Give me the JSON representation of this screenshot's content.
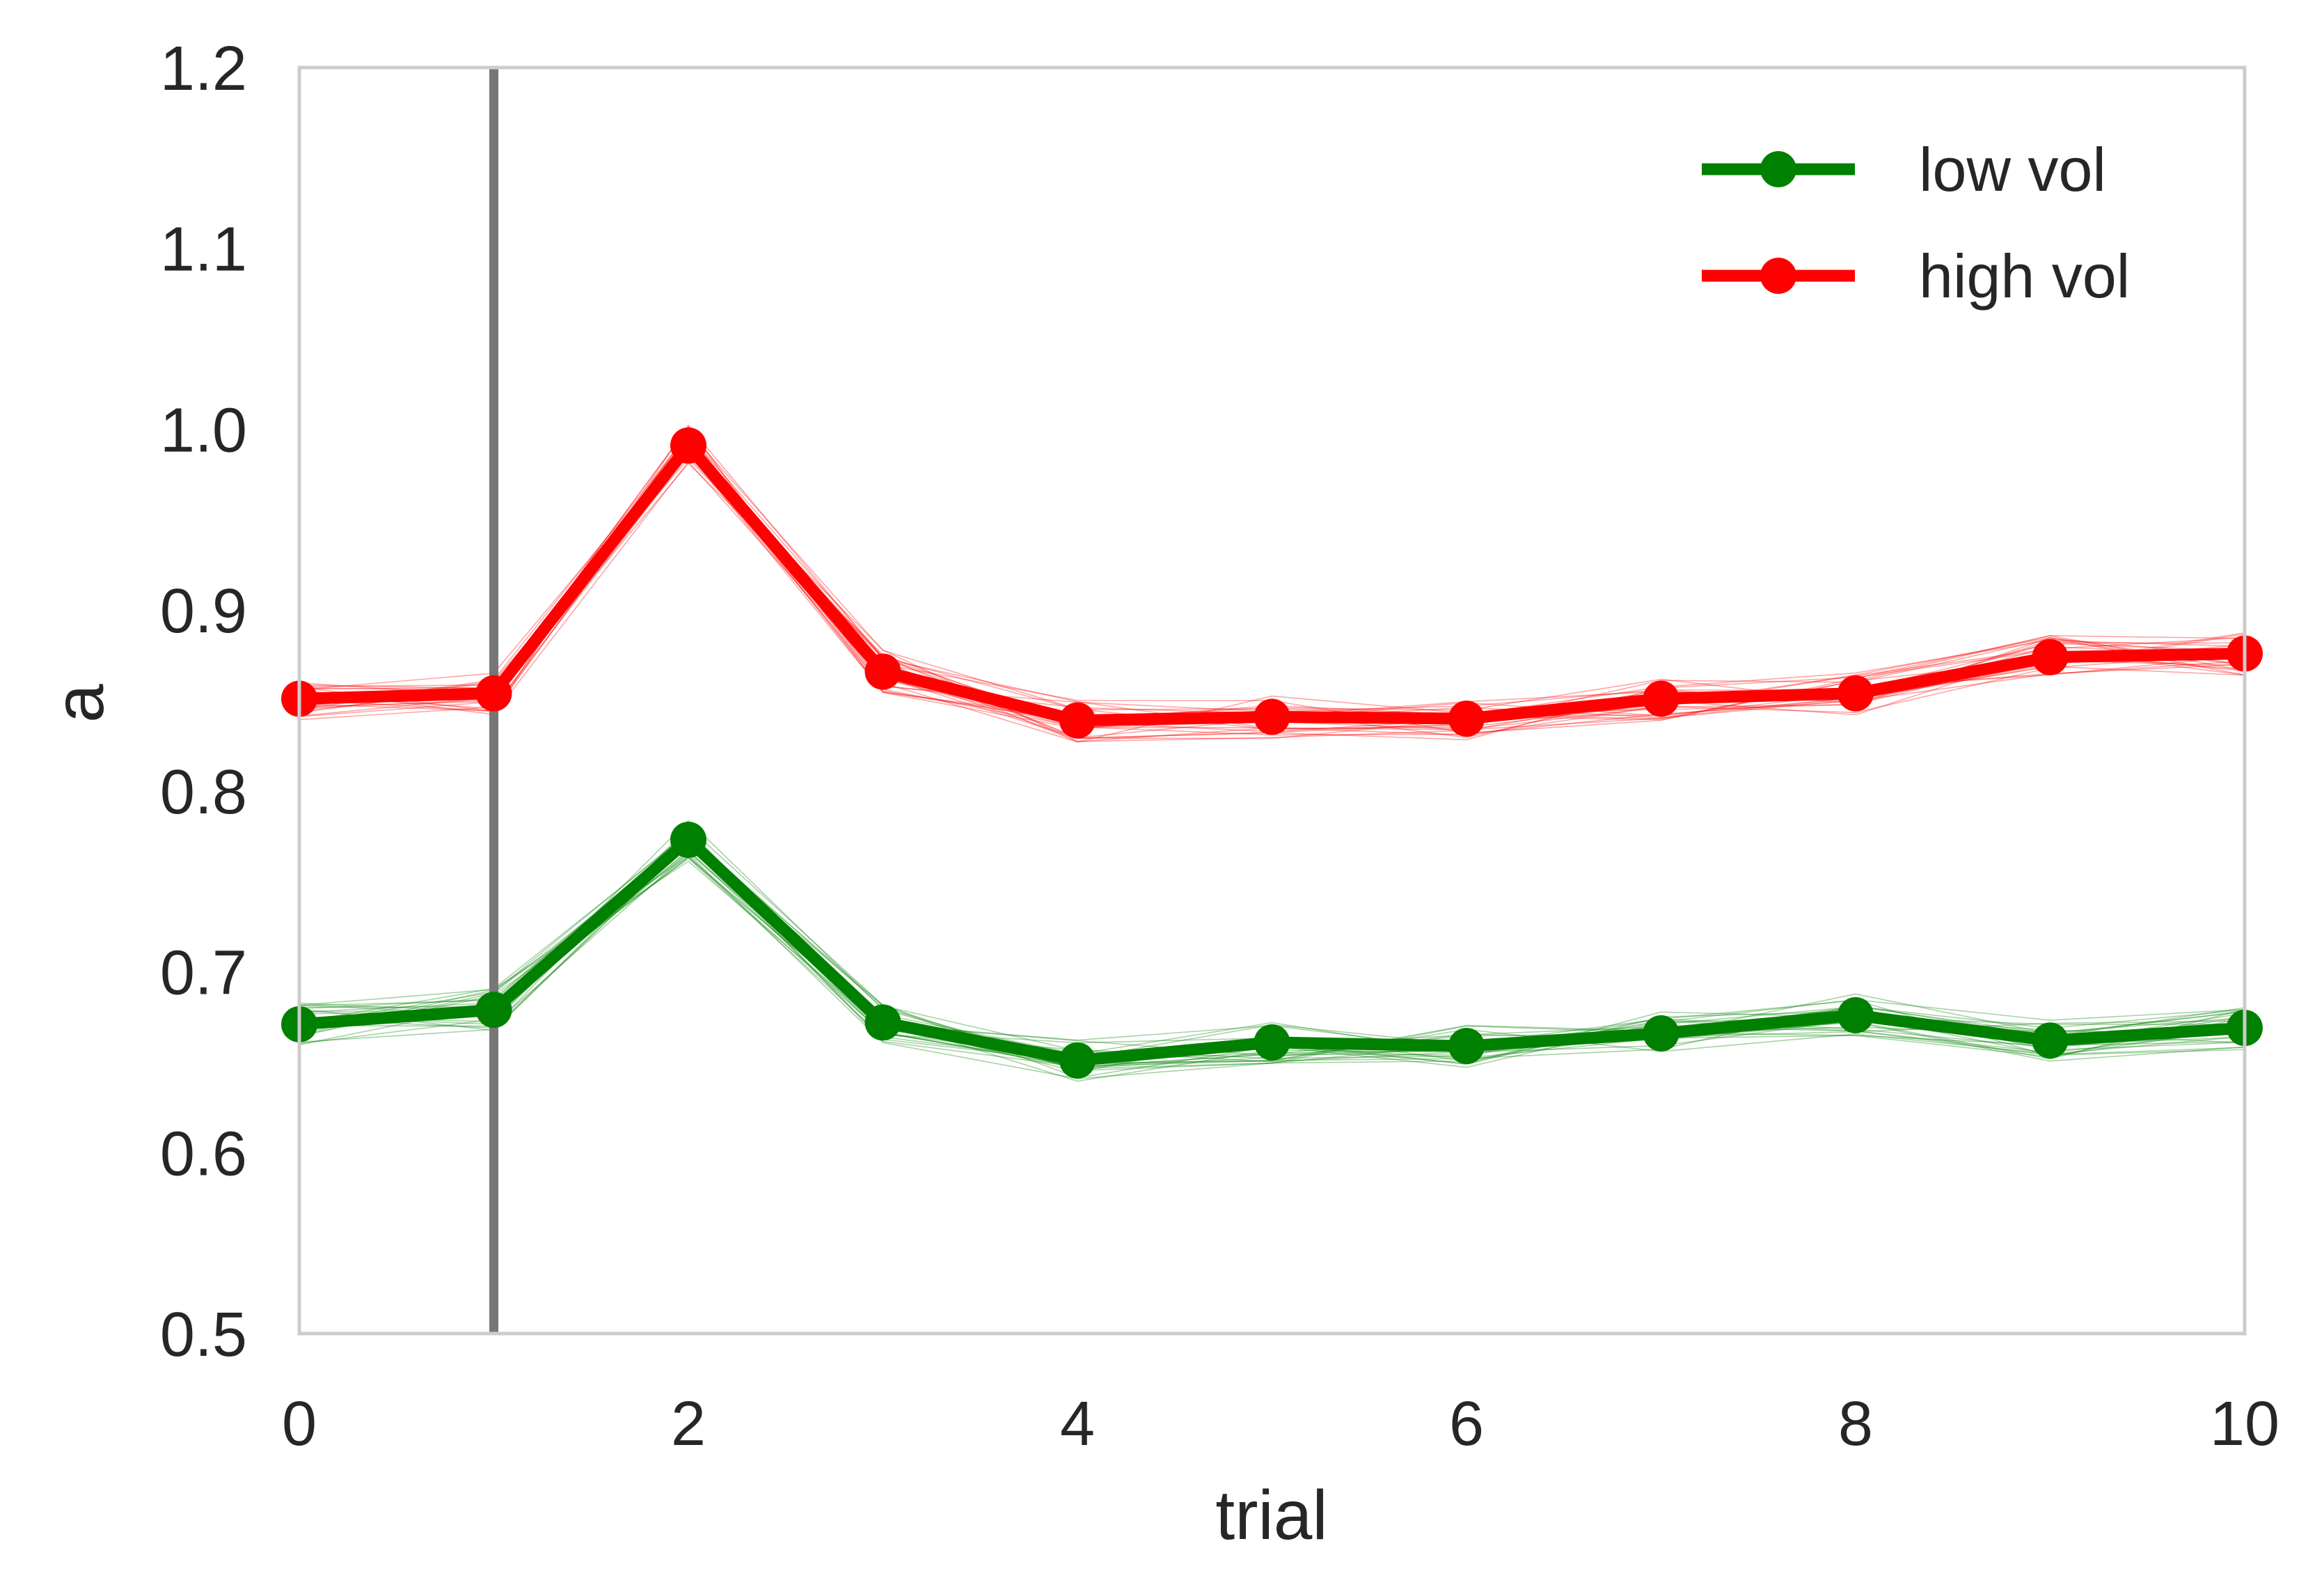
{
  "chart_data": {
    "type": "line",
    "title": "",
    "xlabel": "trial",
    "ylabel": "a",
    "xlim": [
      0,
      10
    ],
    "ylim": [
      0.5,
      1.2
    ],
    "x_ticks": [
      "0",
      "2",
      "4",
      "6",
      "8",
      "10"
    ],
    "y_ticks": [
      "0.5",
      "0.6",
      "0.7",
      "0.8",
      "0.9",
      "1.0",
      "1.1",
      "1.2"
    ],
    "grid": false,
    "legend_position": "top-right",
    "vertical_marker_x": 1,
    "x": [
      0,
      1,
      2,
      3,
      4,
      5,
      6,
      7,
      8,
      9,
      10
    ],
    "series": [
      {
        "name": "low vol",
        "color": "#008000",
        "values": [
          0.671,
          0.679,
          0.773,
          0.672,
          0.651,
          0.661,
          0.659,
          0.666,
          0.676,
          0.662,
          0.669
        ]
      },
      {
        "name": "high vol",
        "color": "#ff0000",
        "values": [
          0.851,
          0.854,
          0.991,
          0.866,
          0.839,
          0.841,
          0.84,
          0.851,
          0.854,
          0.874,
          0.876
        ]
      }
    ]
  }
}
